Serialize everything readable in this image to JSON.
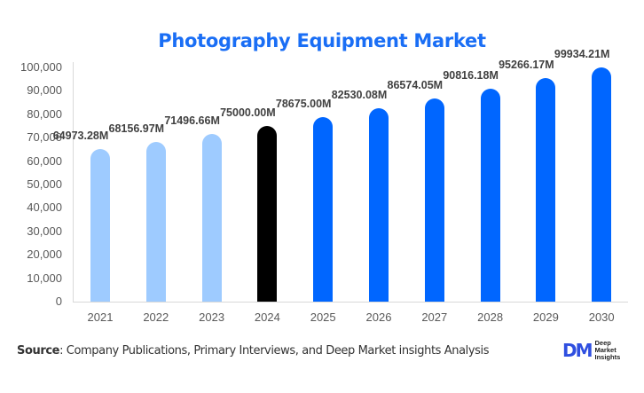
{
  "chart_data": {
    "type": "bar",
    "title": "Photography Equipment Market",
    "xlabel": "",
    "ylabel": "",
    "categories": [
      "2021",
      "2022",
      "2023",
      "2024",
      "2025",
      "2026",
      "2027",
      "2028",
      "2029",
      "2030"
    ],
    "values": [
      64973.28,
      68156.97,
      71496.66,
      75000.0,
      78675.0,
      82530.08,
      86574.05,
      90816.18,
      95266.17,
      99934.21
    ],
    "value_labels": [
      "64973.28M",
      "68156.97M",
      "71496.66M",
      "75000.00M",
      "78675.00M",
      "82530.08M",
      "86574.05M",
      "90816.18M",
      "95266.17M",
      "99934.21M"
    ],
    "ylim": [
      0,
      100000
    ],
    "yticks": [
      "0",
      "10,000",
      "20,000",
      "30,000",
      "40,000",
      "50,000",
      "60,000",
      "70,000",
      "80,000",
      "90,000",
      "100,000"
    ],
    "grid": false,
    "legend": null,
    "bar_colors": [
      "#9ecbff",
      "#9ecbff",
      "#9ecbff",
      "#000000",
      "#0066ff",
      "#0066ff",
      "#0066ff",
      "#0066ff",
      "#0066ff",
      "#0066ff"
    ]
  },
  "header": {
    "title": "Photography Equipment Market"
  },
  "footer": {
    "source_label": "Source",
    "source_text": ": Company Publications, Primary Interviews, and Deep Market insights Analysis",
    "logo_mark": "DM",
    "logo_lines": [
      "Deep",
      "Market",
      "Insights"
    ]
  },
  "colors": {
    "title": "#1a6ef5",
    "historic": "#9ecbff",
    "base_year": "#000000",
    "forecast": "#0066ff"
  }
}
